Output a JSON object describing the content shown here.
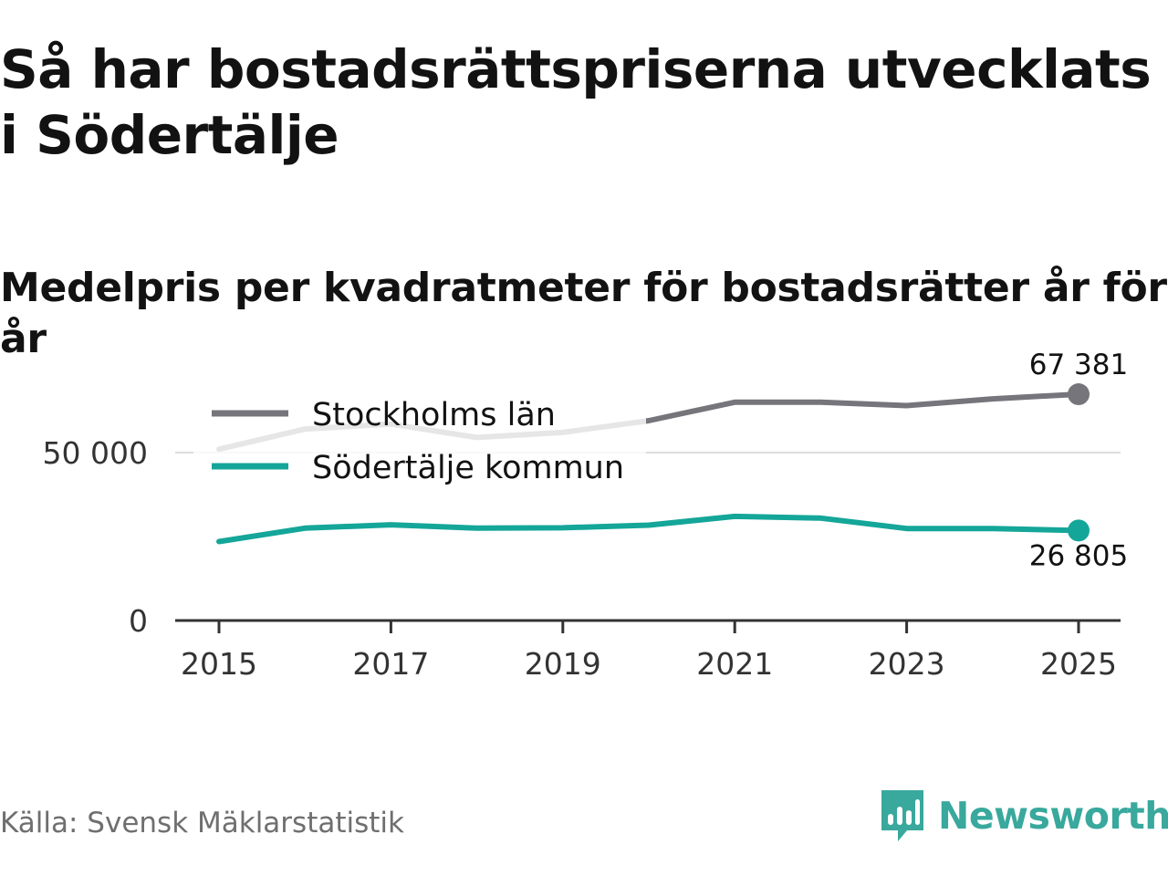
{
  "title": "Så har bostadsrättspriserna utvecklats i Södertälje",
  "subtitle": "Medelpris per kvadratmeter för bostadsrätter år för år",
  "source": "Källa: Svensk Mäklarstatistik",
  "brand": {
    "name": "Newsworthy",
    "color": "#39a89d"
  },
  "colors": {
    "stockholm": "#76757b",
    "sodertalje": "#14a699",
    "stockholm_faded": "#e4e4e4",
    "grid": "#dddddd",
    "axis": "#333333"
  },
  "chart_data": {
    "type": "line",
    "title": "Medelpris per kvadratmeter för bostadsrätter år för år",
    "xlabel": "",
    "ylabel": "",
    "x": [
      2015,
      2016,
      2017,
      2018,
      2019,
      2020,
      2021,
      2022,
      2023,
      2024,
      2025
    ],
    "x_ticks": [
      "2015",
      "2017",
      "2019",
      "2021",
      "2023",
      "2025"
    ],
    "x_tick_values": [
      2015,
      2017,
      2019,
      2021,
      2023,
      2025
    ],
    "y_ticks": [
      "0",
      "50 000"
    ],
    "y_tick_values": [
      0,
      50000
    ],
    "xlim": [
      2014.5,
      2025.5
    ],
    "ylim": [
      0,
      65000
    ],
    "legend_position": "top-left",
    "series": [
      {
        "name": "Stockholms län",
        "values": [
          51000,
          57000,
          58500,
          54500,
          56000,
          59500,
          65000,
          65000,
          64000,
          66000,
          67381
        ],
        "end_label": "67 381"
      },
      {
        "name": "Södertälje kommun",
        "values": [
          23500,
          27500,
          28500,
          27500,
          27600,
          28400,
          31000,
          30500,
          27400,
          27400,
          26805
        ],
        "end_label": "26 805"
      }
    ]
  }
}
